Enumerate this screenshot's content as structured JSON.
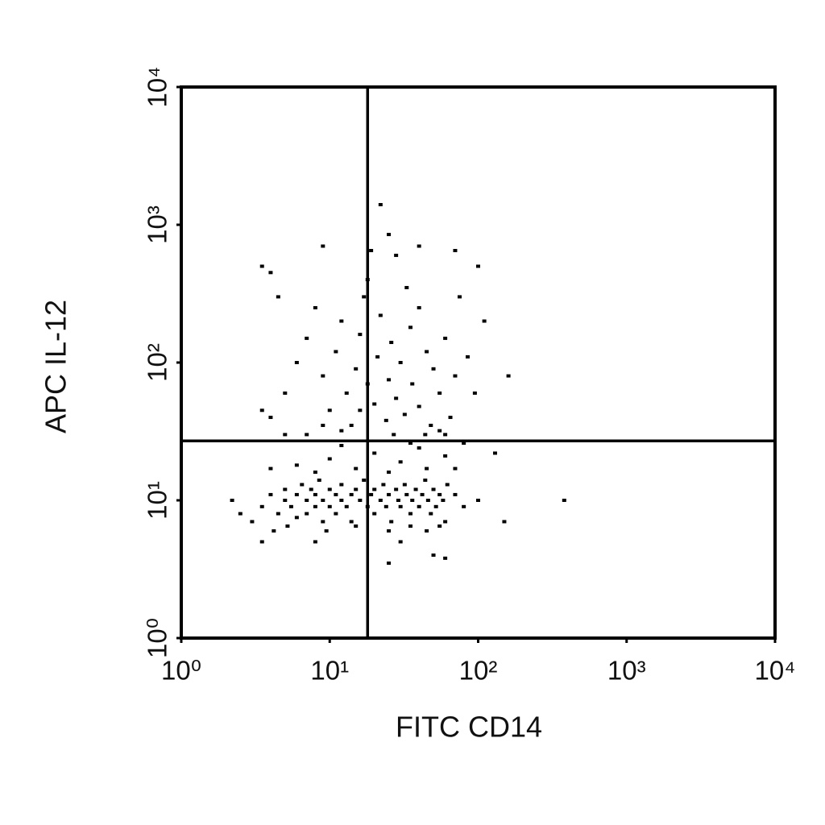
{
  "chart_data": {
    "type": "scatter",
    "x_label": "FITC CD14",
    "y_label": "APC IL-12",
    "xscale": "log",
    "yscale": "log",
    "xlim": [
      1,
      10000
    ],
    "ylim": [
      1,
      10000
    ],
    "xticks": [
      {
        "value": 1,
        "label": "10⁰"
      },
      {
        "value": 10,
        "label": "10¹"
      },
      {
        "value": 100,
        "label": "10²"
      },
      {
        "value": 1000,
        "label": "10³"
      },
      {
        "value": 10000,
        "label": "10⁴"
      }
    ],
    "yticks": [
      {
        "value": 1,
        "label": "10⁰"
      },
      {
        "value": 10,
        "label": "10¹"
      },
      {
        "value": 100,
        "label": "10²"
      },
      {
        "value": 1000,
        "label": "10³"
      },
      {
        "value": 10000,
        "label": "10⁴"
      }
    ],
    "gate_x": 18,
    "gate_y": 27,
    "color": "#000000",
    "x": [
      3.5,
      4,
      4.5,
      5,
      5,
      5.5,
      6,
      6,
      6.5,
      7,
      7,
      7.5,
      8,
      8,
      8.5,
      9,
      9,
      10,
      10,
      11,
      11,
      12,
      12,
      13,
      14,
      14,
      15,
      16,
      17,
      18,
      19,
      20,
      20,
      22,
      23,
      24,
      25,
      26,
      28,
      29,
      30,
      32,
      33,
      35,
      36,
      38,
      40,
      42,
      44,
      46,
      48,
      50,
      52,
      55,
      58,
      60,
      62,
      3,
      2.5,
      2.2,
      4.2,
      5.2,
      9.5,
      15,
      25,
      35,
      45,
      55,
      70,
      80,
      100,
      150,
      30,
      50,
      25,
      60,
      3.5,
      8,
      380,
      6,
      10,
      15,
      20,
      30,
      40,
      60,
      80,
      130,
      12,
      25,
      45,
      8,
      4,
      35,
      70,
      4,
      5,
      6,
      7,
      8,
      4.5,
      3.5,
      4,
      9,
      10,
      11,
      12,
      13,
      14,
      15,
      16,
      17,
      18,
      18,
      20,
      21,
      22,
      24,
      25,
      26,
      28,
      28,
      30,
      32,
      35,
      36,
      40,
      40,
      45,
      48,
      50,
      55,
      60,
      65,
      70,
      75,
      85,
      95,
      100,
      110,
      160,
      70,
      40,
      25,
      22,
      9,
      19,
      33,
      55,
      12,
      7,
      5,
      9,
      16,
      27,
      44,
      60,
      3.5
    ],
    "values": [
      9,
      11,
      8,
      10,
      12,
      9,
      11,
      7.5,
      13,
      10,
      8,
      12,
      9,
      11,
      14,
      10,
      7,
      12,
      9,
      11,
      8,
      13,
      10,
      9,
      11,
      7,
      12,
      10,
      14,
      9,
      11,
      12,
      8,
      10,
      13,
      9,
      11,
      7,
      12,
      10,
      9,
      13,
      11,
      8,
      10,
      12,
      9,
      11,
      14,
      10,
      8,
      12,
      9,
      11,
      10,
      7,
      13,
      7,
      8,
      10,
      6,
      6.5,
      6,
      6.5,
      6,
      6.5,
      6,
      6.5,
      11,
      9,
      10,
      7,
      5,
      4,
      3.5,
      3.8,
      5,
      5,
      10,
      18,
      20,
      17,
      22,
      19,
      24,
      21,
      26,
      22,
      25,
      16,
      17,
      16,
      17,
      26,
      17,
      40,
      60,
      100,
      150,
      250,
      300,
      500,
      450,
      80,
      45,
      120,
      200,
      60,
      35,
      90,
      160,
      300,
      70,
      400,
      50,
      110,
      220,
      38,
      75,
      140,
      600,
      55,
      100,
      42,
      180,
      70,
      250,
      48,
      120,
      35,
      90,
      60,
      150,
      40,
      80,
      300,
      110,
      60,
      500,
      200,
      80,
      650,
      700,
      850,
      1400,
      700,
      650,
      350,
      32,
      32,
      30,
      30,
      35,
      45,
      30,
      30,
      30,
      45
    ]
  }
}
